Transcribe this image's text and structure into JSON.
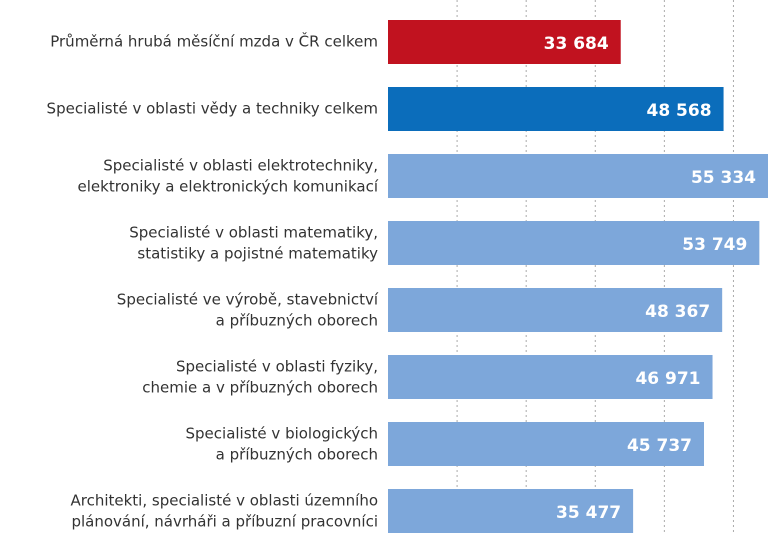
{
  "chart_data": {
    "type": "barh",
    "categories": [
      "Průměrná hrubá měsíční mzda v ČR celkem",
      "Specialisté v oblasti vědy a techniky celkem",
      "Specialisté v oblasti elektrotechniky,\nelektroniky a elektronických komunikací",
      "Specialisté v oblasti matematiky,\nstatistiky a pojistné matematiky",
      "Specialisté ve výrobě, stavebnictví\na příbuzných oborech",
      "Specialisté v oblasti fyziky,\nchemie a v příbuzných oborech",
      "Specialisté v biologických\na příbuzných oborech",
      "Architekti, specialisté v oblasti územního\nplánování, návrháři a příbuzní pracovníci"
    ],
    "values": [
      33684,
      48568,
      55334,
      53749,
      48367,
      46971,
      45737,
      35477
    ],
    "value_labels": [
      "33 684",
      "48 568",
      "55 334",
      "53 749",
      "48 367",
      "46 971",
      "45 737",
      "35 477"
    ],
    "colors": [
      "#c1121f",
      "#0b6dbb",
      "#7da7da",
      "#7da7da",
      "#7da7da",
      "#7da7da",
      "#7da7da",
      "#7da7da"
    ],
    "xlim": [
      0,
      55000
    ],
    "xticks": [
      10000,
      20000,
      30000,
      40000,
      50000
    ],
    "grid": true
  }
}
